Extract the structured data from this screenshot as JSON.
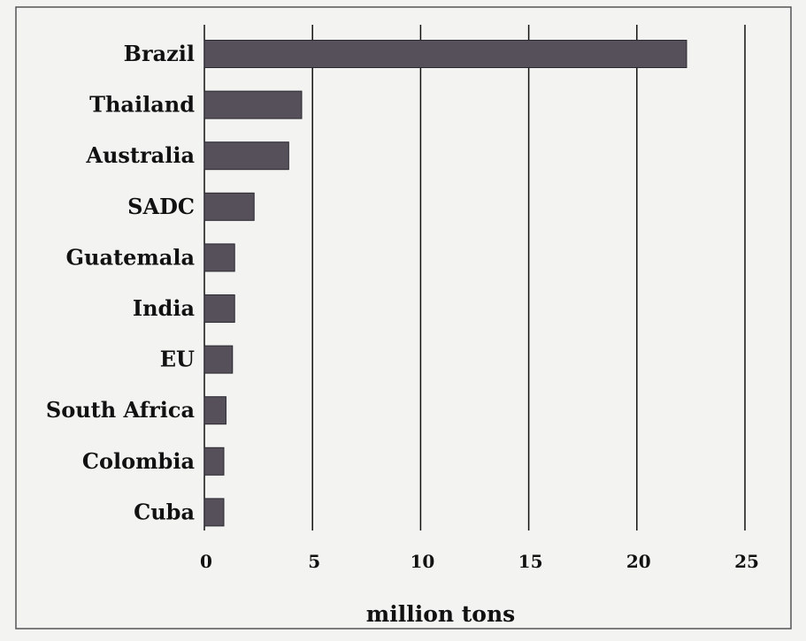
{
  "chart_data": {
    "type": "bar",
    "orientation": "horizontal",
    "title": "",
    "xlabel": "million tons",
    "ylabel": "",
    "categories": [
      "Brazil",
      "Thailand",
      "Australia",
      "SADC",
      "Guatemala",
      "India",
      "EU",
      "South Africa",
      "Colombia",
      "Cuba"
    ],
    "values": [
      22.3,
      4.5,
      3.9,
      2.3,
      1.4,
      1.4,
      1.3,
      1.0,
      0.9,
      0.9
    ],
    "xlim": [
      0,
      25
    ],
    "xticks": [
      "0",
      "5",
      "10",
      "15",
      "20",
      "25"
    ],
    "grid": "vertical",
    "legend": "none",
    "colors": {
      "bar": "#55505a",
      "bar_edge": "#2b2830",
      "grid": "#111111",
      "frame": "#555555",
      "text": "#111111",
      "background": "#f3f3f1"
    }
  }
}
